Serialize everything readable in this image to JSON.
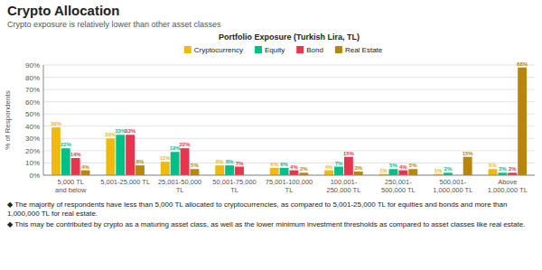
{
  "chart_data": {
    "type": "bar",
    "title": "Crypto Allocation",
    "subtitle": "Crypto exposure is relatively lower than other asset classes",
    "chart_title": "Portfolio Exposure (Turkish Lira, TL)",
    "y_label": "% of Respondents",
    "categories": [
      "5,000 TL\nand below",
      "5,001-25,000 TL",
      "25,001-50,000 TL",
      "50,001-75,000 TL",
      "75,001-100,000 TL",
      "100,001-250,000 TL",
      "250,001-500,000 TL",
      "500,001-1,000,000 TL",
      "Above 1,000,000 TL"
    ],
    "series": [
      {
        "name": "Cryptocurrency",
        "color": "#F0B90B",
        "values": [
          39,
          30,
          11,
          8,
          6,
          4,
          1,
          1,
          5
        ],
        "value_labels": [
          "39%",
          "30%",
          "11%",
          "8%",
          "6%",
          "4%",
          "1%",
          "1%",
          "5%"
        ]
      },
      {
        "name": "Equity",
        "color": "#00C087",
        "values": [
          22,
          33,
          19,
          8,
          6,
          7,
          5,
          2,
          2
        ],
        "value_labels": [
          "22%",
          "33%",
          "19%",
          "8%",
          "6%",
          "7%",
          "5%",
          "2%",
          "2%"
        ]
      },
      {
        "name": "Bond",
        "color": "#E8344E",
        "values": [
          14,
          33,
          22,
          7,
          4,
          15,
          4,
          0,
          2
        ],
        "value_labels": [
          "14%",
          "33%",
          "22%",
          "7%",
          "4%",
          "15%",
          "4%",
          null,
          "2%"
        ]
      },
      {
        "name": "Real Estate",
        "color": "#B8860B",
        "values": [
          4,
          8,
          5,
          0,
          2,
          3,
          5,
          15,
          88
        ],
        "value_labels": [
          "4%",
          "8%",
          "5%",
          null,
          "2%",
          "3%",
          "5%",
          "15%",
          "88%"
        ]
      }
    ],
    "ylim": [
      0,
      90
    ],
    "yticks": [
      {
        "value": 0,
        "label": "0%"
      },
      {
        "value": 10,
        "label": "10%"
      },
      {
        "value": 20,
        "label": "20%"
      },
      {
        "value": 30,
        "label": "30%"
      },
      {
        "value": 40,
        "label": "40%"
      },
      {
        "value": 50,
        "label": "50%"
      },
      {
        "value": 60,
        "label": "60%"
      },
      {
        "value": 70,
        "label": "70%"
      },
      {
        "value": 80,
        "label": "80%"
      },
      {
        "value": 90,
        "label": "90%"
      }
    ],
    "grid": true,
    "legend": "top",
    "data_labels": true,
    "annotations": [
      "◆ The majority of respondents have less than 5,000 TL allocated to cryptocurrencies, as compared to 5,001-25,000 TL for equities and bonds and more than\n1,000,000 TL for real estate.",
      "◆ This may be contributed by crypto as a maturing asset class, as well as the lower minimum investment thresholds as compared to asset classes like real estate."
    ]
  }
}
